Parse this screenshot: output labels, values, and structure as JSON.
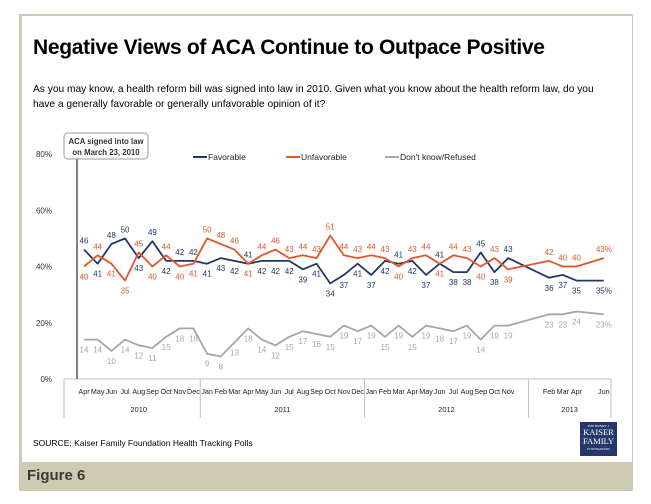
{
  "title": "Negative Views of ACA Continue to Outpace Positive",
  "question": "As you may know, a health reform bill was signed into law in 2010. Given what you know about the health reform law, do you have a generally favorable or generally unfavorable opinion of it?",
  "source": "SOURCE: Kaiser Family Foundation Health Tracking Polls",
  "figure_label": "Figure 6",
  "logo": {
    "line1": "THE HENRY J.",
    "line2": "KAISER",
    "line3": "FAMILY",
    "line4": "FOUNDATION"
  },
  "chart_data": {
    "type": "line",
    "title": "",
    "xlabel": "",
    "ylabel": "",
    "ylim": [
      0,
      80
    ],
    "yticks": [
      "0%",
      "20%",
      "40%",
      "60%",
      "80%"
    ],
    "grid": false,
    "legend_position": "top",
    "annotation": {
      "line1": "ACA signed into law",
      "line2": "on March 23, 2010"
    },
    "years": [
      {
        "label": "2010",
        "months": [
          "Apr",
          "May",
          "Jun",
          "Jul",
          "Aug",
          "Sep",
          "Oct",
          "Nov",
          "Dec"
        ]
      },
      {
        "label": "2011",
        "months": [
          "Jan",
          "Feb",
          "Mar",
          "Apr",
          "May",
          "Jun",
          "Jul",
          "Aug",
          "Sep",
          "Oct",
          "Nov",
          "Dec"
        ]
      },
      {
        "label": "2012",
        "months": [
          "Jan",
          "Feb",
          "Mar",
          "Apr",
          "May",
          "Jun",
          "Jul",
          "Aug",
          "Sep",
          "Oct",
          "Nov",
          ""
        ]
      },
      {
        "label": "2013",
        "months": [
          "",
          "Feb",
          "Mar",
          "Apr",
          "",
          "Jun"
        ]
      }
    ],
    "series": [
      {
        "name": "Favorable",
        "color": "#1f3864",
        "values": [
          46,
          41,
          48,
          50,
          43,
          49,
          42,
          42,
          42,
          41,
          43,
          42,
          41,
          42,
          42,
          42,
          39,
          41,
          34,
          37,
          41,
          37,
          42,
          41,
          42,
          37,
          41,
          38,
          38,
          45,
          38,
          43,
          null,
          null,
          36,
          37,
          35,
          null,
          35
        ]
      },
      {
        "name": "Unfavorable",
        "color": "#e2572a",
        "values": [
          40,
          44,
          41,
          35,
          45,
          40,
          44,
          40,
          41,
          50,
          48,
          46,
          41,
          44,
          46,
          43,
          44,
          43,
          51,
          44,
          43,
          44,
          43,
          40,
          43,
          44,
          41,
          44,
          43,
          40,
          43,
          39,
          null,
          null,
          42,
          40,
          40,
          null,
          43
        ]
      },
      {
        "name": "Don't know/Refused",
        "color": "#a6a6a6",
        "values": [
          14,
          14,
          10,
          14,
          12,
          11,
          15,
          18,
          18,
          9,
          8,
          13,
          18,
          14,
          12,
          15,
          17,
          16,
          15,
          19,
          17,
          19,
          15,
          19,
          15,
          19,
          18,
          17,
          19,
          14,
          19,
          19,
          null,
          null,
          23,
          23,
          24,
          null,
          23
        ]
      }
    ]
  }
}
